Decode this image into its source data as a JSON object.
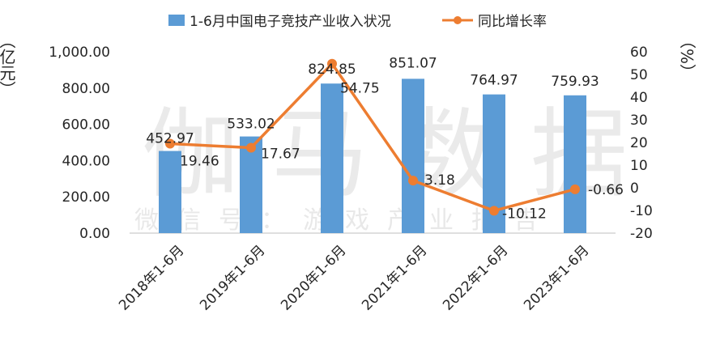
{
  "chart_data": {
    "type": "bar",
    "categories": [
      "2018年1-6月",
      "2019年1-6月",
      "2020年1-6月",
      "2021年1-6月",
      "2022年1-6月",
      "2023年1-6月"
    ],
    "series": [
      {
        "name": "1-6月中国电子竞技产业收入状况",
        "type": "bar",
        "axis": "left",
        "values": [
          452.97,
          533.02,
          824.85,
          851.07,
          764.97,
          759.93
        ],
        "labels": [
          "452.97",
          "533.02",
          "824.85",
          "851.07",
          "764.97",
          "759.93"
        ],
        "color": "#5b9bd5"
      },
      {
        "name": "同比增长率",
        "type": "line",
        "axis": "right",
        "values": [
          19.46,
          17.67,
          54.75,
          3.18,
          -10.12,
          -0.66
        ],
        "labels": [
          "19.46",
          "17.67",
          "54.75",
          "3.18",
          "-10.12",
          "-0.66"
        ],
        "color": "#ed7d31"
      }
    ],
    "y_left": {
      "label": "（亿元）",
      "ylim": [
        0,
        1000
      ],
      "ticks": [
        "0.00",
        "200.00",
        "400.00",
        "600.00",
        "800.00",
        "1,000.00"
      ]
    },
    "y_right": {
      "label": "（%）",
      "ylim": [
        -20,
        60
      ],
      "ticks": [
        "-20",
        "-10",
        "0",
        "10",
        "20",
        "30",
        "40",
        "50",
        "60"
      ]
    },
    "legend_position": "top",
    "grid": false
  },
  "watermark": {
    "main": "伽马数据",
    "sub": "微信号：游戏产业报告"
  }
}
